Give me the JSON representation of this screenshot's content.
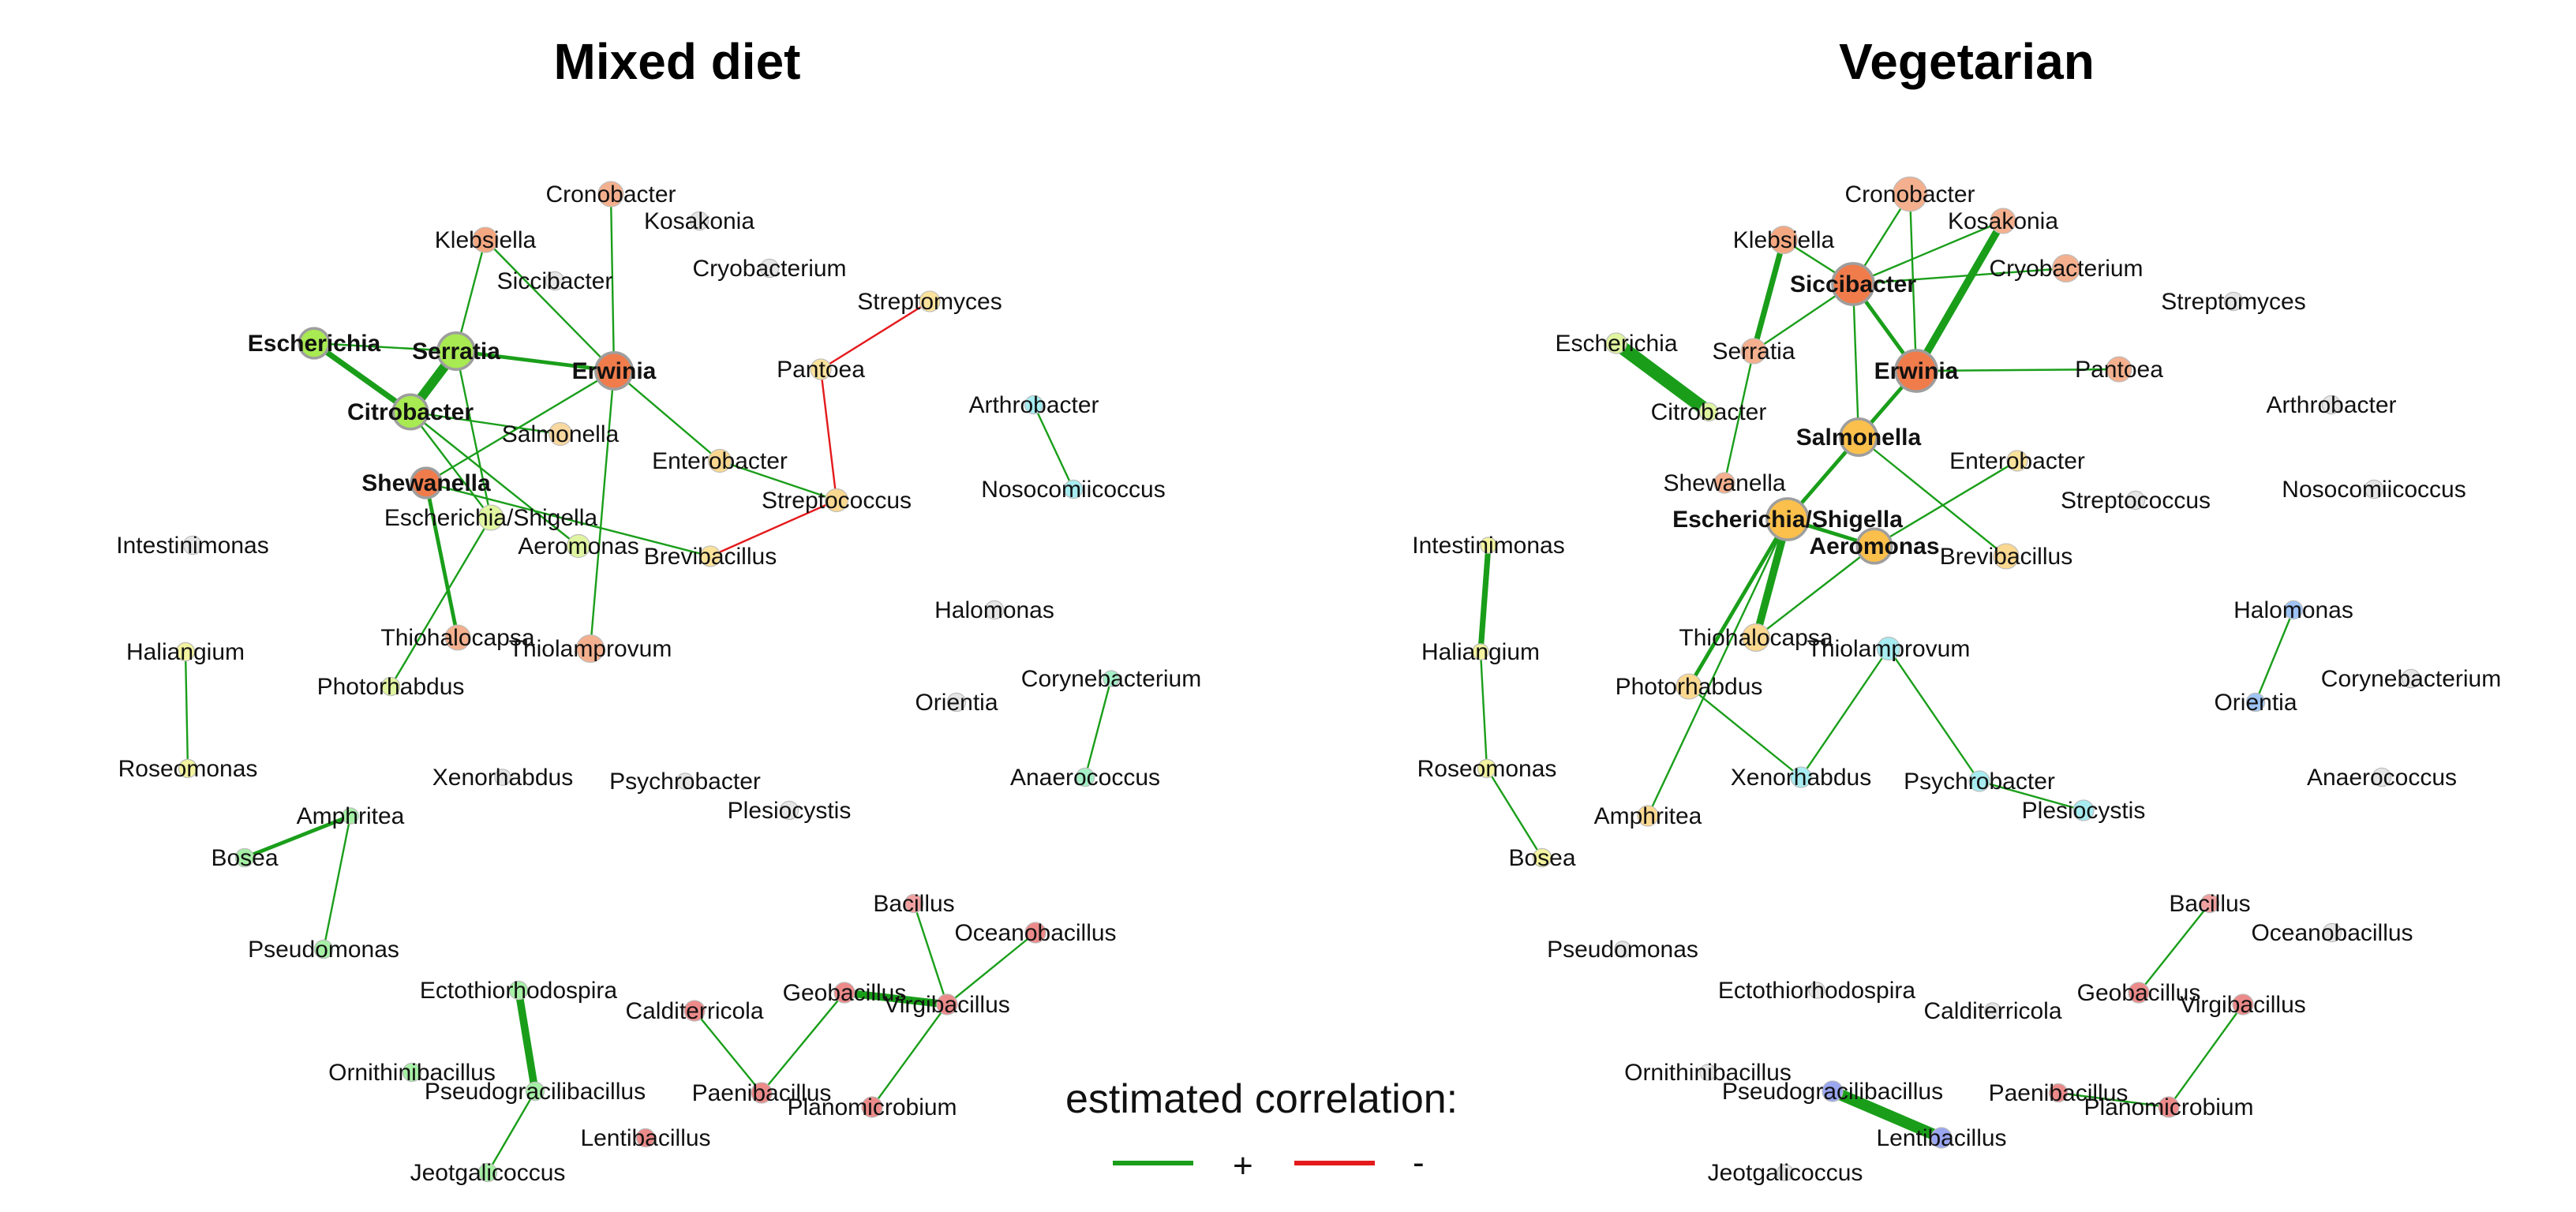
{
  "colors": {
    "positive_edge": "#1a9e1a",
    "negative_edge": "#e41a1c",
    "node_stroke": "#bdbdbd",
    "hub_stroke": "#9e9e9e"
  },
  "legend": {
    "title": "estimated correlation:",
    "positive_label": "+",
    "negative_label": "-"
  },
  "networks": [
    {
      "title": "Mixed diet",
      "nodes": [
        {
          "name": "Cronobacter",
          "color": "#f4b08e",
          "r": 11
        },
        {
          "name": "Kosakonia",
          "color": "#e6e6e6",
          "r": 8
        },
        {
          "name": "Klebsiella",
          "color": "#f4a882",
          "r": 11
        },
        {
          "name": "Cryobacterium",
          "color": "#e6e6e6",
          "r": 8
        },
        {
          "name": "Siccibacter",
          "color": "#e6e6e6",
          "r": 8
        },
        {
          "name": "Streptomyces",
          "color": "#fbe29b",
          "r": 9
        },
        {
          "name": "Escherichia",
          "color": "#a8ea52",
          "r": 13,
          "hub": true
        },
        {
          "name": "Serratia",
          "color": "#a8ea52",
          "r": 16,
          "hub": true
        },
        {
          "name": "Erwinia",
          "color": "#f07c4c",
          "r": 16,
          "hub": true
        },
        {
          "name": "Pantoea",
          "color": "#fbe29b",
          "r": 9
        },
        {
          "name": "Citrobacter",
          "color": "#a8ea52",
          "r": 15,
          "hub": true
        },
        {
          "name": "Arthrobacter",
          "color": "#a6ecf0",
          "r": 8
        },
        {
          "name": "Salmonella",
          "color": "#f9d8a0",
          "r": 10
        },
        {
          "name": "Enterobacter",
          "color": "#fbd890",
          "r": 10
        },
        {
          "name": "Shewanella",
          "color": "#f07c4c",
          "r": 13,
          "hub": true
        },
        {
          "name": "Streptococcus",
          "color": "#fbd890",
          "r": 10
        },
        {
          "name": "Nosocomiicoccus",
          "color": "#a6ecf0",
          "r": 8
        },
        {
          "name": "Escherichia/Shigella",
          "color": "#e0f5a0",
          "r": 11
        },
        {
          "name": "Aeromonas",
          "color": "#e0f5a0",
          "r": 10
        },
        {
          "name": "Brevibacillus",
          "color": "#fbe29b",
          "r": 9
        },
        {
          "name": "Intestinimonas",
          "color": "#e6e6e6",
          "r": 8
        },
        {
          "name": "Halomonas",
          "color": "#e6e6e6",
          "r": 8
        },
        {
          "name": "Thiohalocapsa",
          "color": "#f4b08e",
          "r": 11
        },
        {
          "name": "Thiolamprovum",
          "color": "#f4b08e",
          "r": 12
        },
        {
          "name": "Haliangium",
          "color": "#f3f3a0",
          "r": 8
        },
        {
          "name": "Photorhabdus",
          "color": "#e0f5a0",
          "r": 8
        },
        {
          "name": "Corynebacterium",
          "color": "#a6f0c8",
          "r": 7
        },
        {
          "name": "Orientia",
          "color": "#e6e6e6",
          "r": 8
        },
        {
          "name": "Roseomonas",
          "color": "#f3f3a0",
          "r": 8
        },
        {
          "name": "Anaerococcus",
          "color": "#a6f0c8",
          "r": 8
        },
        {
          "name": "Xenorhabdus",
          "color": "#e6e6e6",
          "r": 7
        },
        {
          "name": "Psychrobacter",
          "color": "#e6e6e6",
          "r": 7
        },
        {
          "name": "Amphritea",
          "color": "#a6f0a6",
          "r": 7
        },
        {
          "name": "Plesiocystis",
          "color": "#e6e6e6",
          "r": 8
        },
        {
          "name": "Bosea",
          "color": "#a6f0a6",
          "r": 8
        },
        {
          "name": "Bacillus",
          "color": "#f0a0a0",
          "r": 8
        },
        {
          "name": "Oceanobacillus",
          "color": "#ec8a8a",
          "r": 9
        },
        {
          "name": "Pseudomonas",
          "color": "#a6f0a6",
          "r": 8
        },
        {
          "name": "Ectothiorhodospira",
          "color": "#a6f0a6",
          "r": 8
        },
        {
          "name": "Geobacillus",
          "color": "#ec8a8a",
          "r": 9
        },
        {
          "name": "Virgibacillus",
          "color": "#ec8a8a",
          "r": 9
        },
        {
          "name": "Calditerricola",
          "color": "#ec8a8a",
          "r": 9
        },
        {
          "name": "Ornithinibacillus",
          "color": "#a6f0a6",
          "r": 8
        },
        {
          "name": "Pseudogracilibacillus",
          "color": "#a6f0a6",
          "r": 8
        },
        {
          "name": "Paenibacillus",
          "color": "#ec8a8a",
          "r": 9
        },
        {
          "name": "Planomicrobium",
          "color": "#ec8a8a",
          "r": 9
        },
        {
          "name": "Lentibacillus",
          "color": "#ec8a8a",
          "r": 8
        },
        {
          "name": "Jeotgalicoccus",
          "color": "#a6f0a6",
          "r": 8
        }
      ],
      "edges": [
        {
          "source": "Cronobacter",
          "target": "Erwinia",
          "sign": "+",
          "weight": 1
        },
        {
          "source": "Klebsiella",
          "target": "Erwinia",
          "sign": "+",
          "weight": 1
        },
        {
          "source": "Klebsiella",
          "target": "Serratia",
          "sign": "+",
          "weight": 1
        },
        {
          "source": "Escherichia",
          "target": "Serratia",
          "sign": "+",
          "weight": 1
        },
        {
          "source": "Escherichia",
          "target": "Citrobacter",
          "sign": "+",
          "weight": 3
        },
        {
          "source": "Serratia",
          "target": "Citrobacter",
          "sign": "+",
          "weight": 5
        },
        {
          "source": "Serratia",
          "target": "Erwinia",
          "sign": "+",
          "weight": 2
        },
        {
          "source": "Citrobacter",
          "target": "Salmonella",
          "sign": "+",
          "weight": 1
        },
        {
          "source": "Citrobacter",
          "target": "Escherichia/Shigella",
          "sign": "+",
          "weight": 1
        },
        {
          "source": "Citrobacter",
          "target": "Aeromonas",
          "sign": "+",
          "weight": 1
        },
        {
          "source": "Erwinia",
          "target": "Enterobacter",
          "sign": "+",
          "weight": 1
        },
        {
          "source": "Erwinia",
          "target": "Thiolamprovum",
          "sign": "+",
          "weight": 1
        },
        {
          "source": "Erwinia",
          "target": "Shewanella",
          "sign": "+",
          "weight": 1
        },
        {
          "source": "Shewanella",
          "target": "Thiohalocapsa",
          "sign": "+",
          "weight": 2
        },
        {
          "source": "Shewanella",
          "target": "Brevibacillus",
          "sign": "+",
          "weight": 1
        },
        {
          "source": "Serratia",
          "target": "Escherichia/Shigella",
          "sign": "+",
          "weight": 1
        },
        {
          "source": "Escherichia/Shigella",
          "target": "Photorhabdus",
          "sign": "+",
          "weight": 1
        },
        {
          "source": "Enterobacter",
          "target": "Streptococcus",
          "sign": "+",
          "weight": 1
        },
        {
          "source": "Pantoea",
          "target": "Streptomyces",
          "sign": "-",
          "weight": 1
        },
        {
          "source": "Pantoea",
          "target": "Streptococcus",
          "sign": "-",
          "weight": 1
        },
        {
          "source": "Streptococcus",
          "target": "Brevibacillus",
          "sign": "-",
          "weight": 1
        },
        {
          "source": "Arthrobacter",
          "target": "Nosocomiicoccus",
          "sign": "+",
          "weight": 1
        },
        {
          "source": "Haliangium",
          "target": "Roseomonas",
          "sign": "+",
          "weight": 1
        },
        {
          "source": "Corynebacterium",
          "target": "Anaerococcus",
          "sign": "+",
          "weight": 1
        },
        {
          "source": "Amphritea",
          "target": "Bosea",
          "sign": "+",
          "weight": 2
        },
        {
          "source": "Amphritea",
          "target": "Pseudomonas",
          "sign": "+",
          "weight": 1
        },
        {
          "source": "Bacillus",
          "target": "Virgibacillus",
          "sign": "+",
          "weight": 1
        },
        {
          "source": "Oceanobacillus",
          "target": "Virgibacillus",
          "sign": "+",
          "weight": 1
        },
        {
          "source": "Geobacillus",
          "target": "Virgibacillus",
          "sign": "+",
          "weight": 4
        },
        {
          "source": "Geobacillus",
          "target": "Paenibacillus",
          "sign": "+",
          "weight": 1
        },
        {
          "source": "Virgibacillus",
          "target": "Planomicrobium",
          "sign": "+",
          "weight": 1
        },
        {
          "source": "Calditerricola",
          "target": "Paenibacillus",
          "sign": "+",
          "weight": 1
        },
        {
          "source": "Ectothiorhodospira",
          "target": "Pseudogracilibacillus",
          "sign": "+",
          "weight": 4
        },
        {
          "source": "Pseudogracilibacillus",
          "target": "Jeotgalicoccus",
          "sign": "+",
          "weight": 1
        }
      ]
    },
    {
      "title": "Vegetarian",
      "nodes": [
        {
          "name": "Cronobacter",
          "color": "#f4b08e",
          "r": 15
        },
        {
          "name": "Kosakonia",
          "color": "#f4b08e",
          "r": 11
        },
        {
          "name": "Klebsiella",
          "color": "#f4a882",
          "r": 12
        },
        {
          "name": "Siccibacter",
          "color": "#f07c4c",
          "r": 18,
          "hub": true
        },
        {
          "name": "Cryobacterium",
          "color": "#f4b08e",
          "r": 12
        },
        {
          "name": "Streptomyces",
          "color": "#e6e6e6",
          "r": 8
        },
        {
          "name": "Escherichia",
          "color": "#e0f5a0",
          "r": 9
        },
        {
          "name": "Serratia",
          "color": "#f4b08e",
          "r": 11
        },
        {
          "name": "Erwinia",
          "color": "#f07c4c",
          "r": 18,
          "hub": true
        },
        {
          "name": "Pantoea",
          "color": "#f4b08e",
          "r": 11
        },
        {
          "name": "Citrobacter",
          "color": "#e0f5a0",
          "r": 8
        },
        {
          "name": "Arthrobacter",
          "color": "#e6e6e6",
          "r": 8
        },
        {
          "name": "Salmonella",
          "color": "#fbc04c",
          "r": 16,
          "hub": true
        },
        {
          "name": "Enterobacter",
          "color": "#fbe29b",
          "r": 9
        },
        {
          "name": "Shewanella",
          "color": "#f4b08e",
          "r": 9
        },
        {
          "name": "Streptococcus",
          "color": "#e6e6e6",
          "r": 8
        },
        {
          "name": "Nosocomiicoccus",
          "color": "#e6e6e6",
          "r": 8
        },
        {
          "name": "Escherichia/Shigella",
          "color": "#fbc04c",
          "r": 18,
          "hub": true
        },
        {
          "name": "Aeromonas",
          "color": "#fbc04c",
          "r": 15,
          "hub": true
        },
        {
          "name": "Brevibacillus",
          "color": "#fbd890",
          "r": 11
        },
        {
          "name": "Intestinimonas",
          "color": "#f3f3a0",
          "r": 7
        },
        {
          "name": "Halomonas",
          "color": "#9ec4f4",
          "r": 8
        },
        {
          "name": "Thiohalocapsa",
          "color": "#fbd890",
          "r": 12
        },
        {
          "name": "Thiolamprovum",
          "color": "#a6ecf0",
          "r": 10
        },
        {
          "name": "Haliangium",
          "color": "#f3f3a0",
          "r": 7
        },
        {
          "name": "Photorhabdus",
          "color": "#fbd890",
          "r": 11
        },
        {
          "name": "Corynebacterium",
          "color": "#e6e6e6",
          "r": 8
        },
        {
          "name": "Orientia",
          "color": "#9ec4f4",
          "r": 8
        },
        {
          "name": "Roseomonas",
          "color": "#f3f3a0",
          "r": 8
        },
        {
          "name": "Anaerococcus",
          "color": "#e6e6e6",
          "r": 8
        },
        {
          "name": "Xenorhabdus",
          "color": "#a6ecf0",
          "r": 9
        },
        {
          "name": "Psychrobacter",
          "color": "#a6ecf0",
          "r": 9
        },
        {
          "name": "Amphritea",
          "color": "#fbd890",
          "r": 9
        },
        {
          "name": "Plesiocystis",
          "color": "#a6ecf0",
          "r": 9
        },
        {
          "name": "Bosea",
          "color": "#f3f3a0",
          "r": 8
        },
        {
          "name": "Bacillus",
          "color": "#f0a0a0",
          "r": 8
        },
        {
          "name": "Oceanobacillus",
          "color": "#e6e6e6",
          "r": 8
        },
        {
          "name": "Pseudomonas",
          "color": "#e6e6e6",
          "r": 7
        },
        {
          "name": "Ectothiorhodospira",
          "color": "#e6e6e6",
          "r": 7
        },
        {
          "name": "Geobacillus",
          "color": "#ec8a8a",
          "r": 9
        },
        {
          "name": "Virgibacillus",
          "color": "#ec8a8a",
          "r": 9
        },
        {
          "name": "Calditerricola",
          "color": "#e6e6e6",
          "r": 7
        },
        {
          "name": "Ornithinibacillus",
          "color": "#e6e6e6",
          "r": 7
        },
        {
          "name": "Pseudogracilibacillus",
          "color": "#9aa6f0",
          "r": 9
        },
        {
          "name": "Paenibacillus",
          "color": "#ec8a8a",
          "r": 8
        },
        {
          "name": "Planomicrobium",
          "color": "#ec8a8a",
          "r": 9
        },
        {
          "name": "Lentibacillus",
          "color": "#9aa6f0",
          "r": 9
        },
        {
          "name": "Jeotgalicoccus",
          "color": "#e6e6e6",
          "r": 7
        }
      ],
      "edges": [
        {
          "source": "Cronobacter",
          "target": "Siccibacter",
          "sign": "+",
          "weight": 1
        },
        {
          "source": "Cronobacter",
          "target": "Erwinia",
          "sign": "+",
          "weight": 1
        },
        {
          "source": "Klebsiella",
          "target": "Siccibacter",
          "sign": "+",
          "weight": 1
        },
        {
          "source": "Klebsiella",
          "target": "Serratia",
          "sign": "+",
          "weight": 3
        },
        {
          "source": "Kosakonia",
          "target": "Erwinia",
          "sign": "+",
          "weight": 4
        },
        {
          "source": "Kosakonia",
          "target": "Siccibacter",
          "sign": "+",
          "weight": 1
        },
        {
          "source": "Cryobacterium",
          "target": "Siccibacter",
          "sign": "+",
          "weight": 1
        },
        {
          "source": "Siccibacter",
          "target": "Erwinia",
          "sign": "+",
          "weight": 2
        },
        {
          "source": "Siccibacter",
          "target": "Salmonella",
          "sign": "+",
          "weight": 1
        },
        {
          "source": "Siccibacter",
          "target": "Serratia",
          "sign": "+",
          "weight": 1
        },
        {
          "source": "Erwinia",
          "target": "Pantoea",
          "sign": "+",
          "weight": 1
        },
        {
          "source": "Erwinia",
          "target": "Salmonella",
          "sign": "+",
          "weight": 2
        },
        {
          "source": "Escherichia",
          "target": "Citrobacter",
          "sign": "+",
          "weight": 7
        },
        {
          "source": "Serratia",
          "target": "Shewanella",
          "sign": "+",
          "weight": 1
        },
        {
          "source": "Salmonella",
          "target": "Escherichia/Shigella",
          "sign": "+",
          "weight": 2
        },
        {
          "source": "Salmonella",
          "target": "Brevibacillus",
          "sign": "+",
          "weight": 1
        },
        {
          "source": "Escherichia/Shigella",
          "target": "Aeromonas",
          "sign": "+",
          "weight": 2
        },
        {
          "source": "Escherichia/Shigella",
          "target": "Thiohalocapsa",
          "sign": "+",
          "weight": 4
        },
        {
          "source": "Escherichia/Shigella",
          "target": "Photorhabdus",
          "sign": "+",
          "weight": 2
        },
        {
          "source": "Escherichia/Shigella",
          "target": "Amphritea",
          "sign": "+",
          "weight": 1
        },
        {
          "source": "Aeromonas",
          "target": "Enterobacter",
          "sign": "+",
          "weight": 1
        },
        {
          "source": "Aeromonas",
          "target": "Thiohalocapsa",
          "sign": "+",
          "weight": 1
        },
        {
          "source": "Thiolamprovum",
          "target": "Xenorhabdus",
          "sign": "+",
          "weight": 1
        },
        {
          "source": "Thiolamprovum",
          "target": "Psychrobacter",
          "sign": "+",
          "weight": 1
        },
        {
          "source": "Photorhabdus",
          "target": "Xenorhabdus",
          "sign": "+",
          "weight": 1
        },
        {
          "source": "Psychrobacter",
          "target": "Plesiocystis",
          "sign": "+",
          "weight": 1
        },
        {
          "source": "Intestinimonas",
          "target": "Haliangium",
          "sign": "+",
          "weight": 3
        },
        {
          "source": "Haliangium",
          "target": "Roseomonas",
          "sign": "+",
          "weight": 1
        },
        {
          "source": "Roseomonas",
          "target": "Bosea",
          "sign": "+",
          "weight": 1
        },
        {
          "source": "Halomonas",
          "target": "Orientia",
          "sign": "+",
          "weight": 1
        },
        {
          "source": "Bacillus",
          "target": "Geobacillus",
          "sign": "+",
          "weight": 1
        },
        {
          "source": "Virgibacillus",
          "target": "Planomicrobium",
          "sign": "+",
          "weight": 1
        },
        {
          "source": "Paenibacillus",
          "target": "Planomicrobium",
          "sign": "+",
          "weight": 1
        },
        {
          "source": "Pseudogracilibacillus",
          "target": "Lentibacillus",
          "sign": "+",
          "weight": 6
        }
      ]
    }
  ]
}
